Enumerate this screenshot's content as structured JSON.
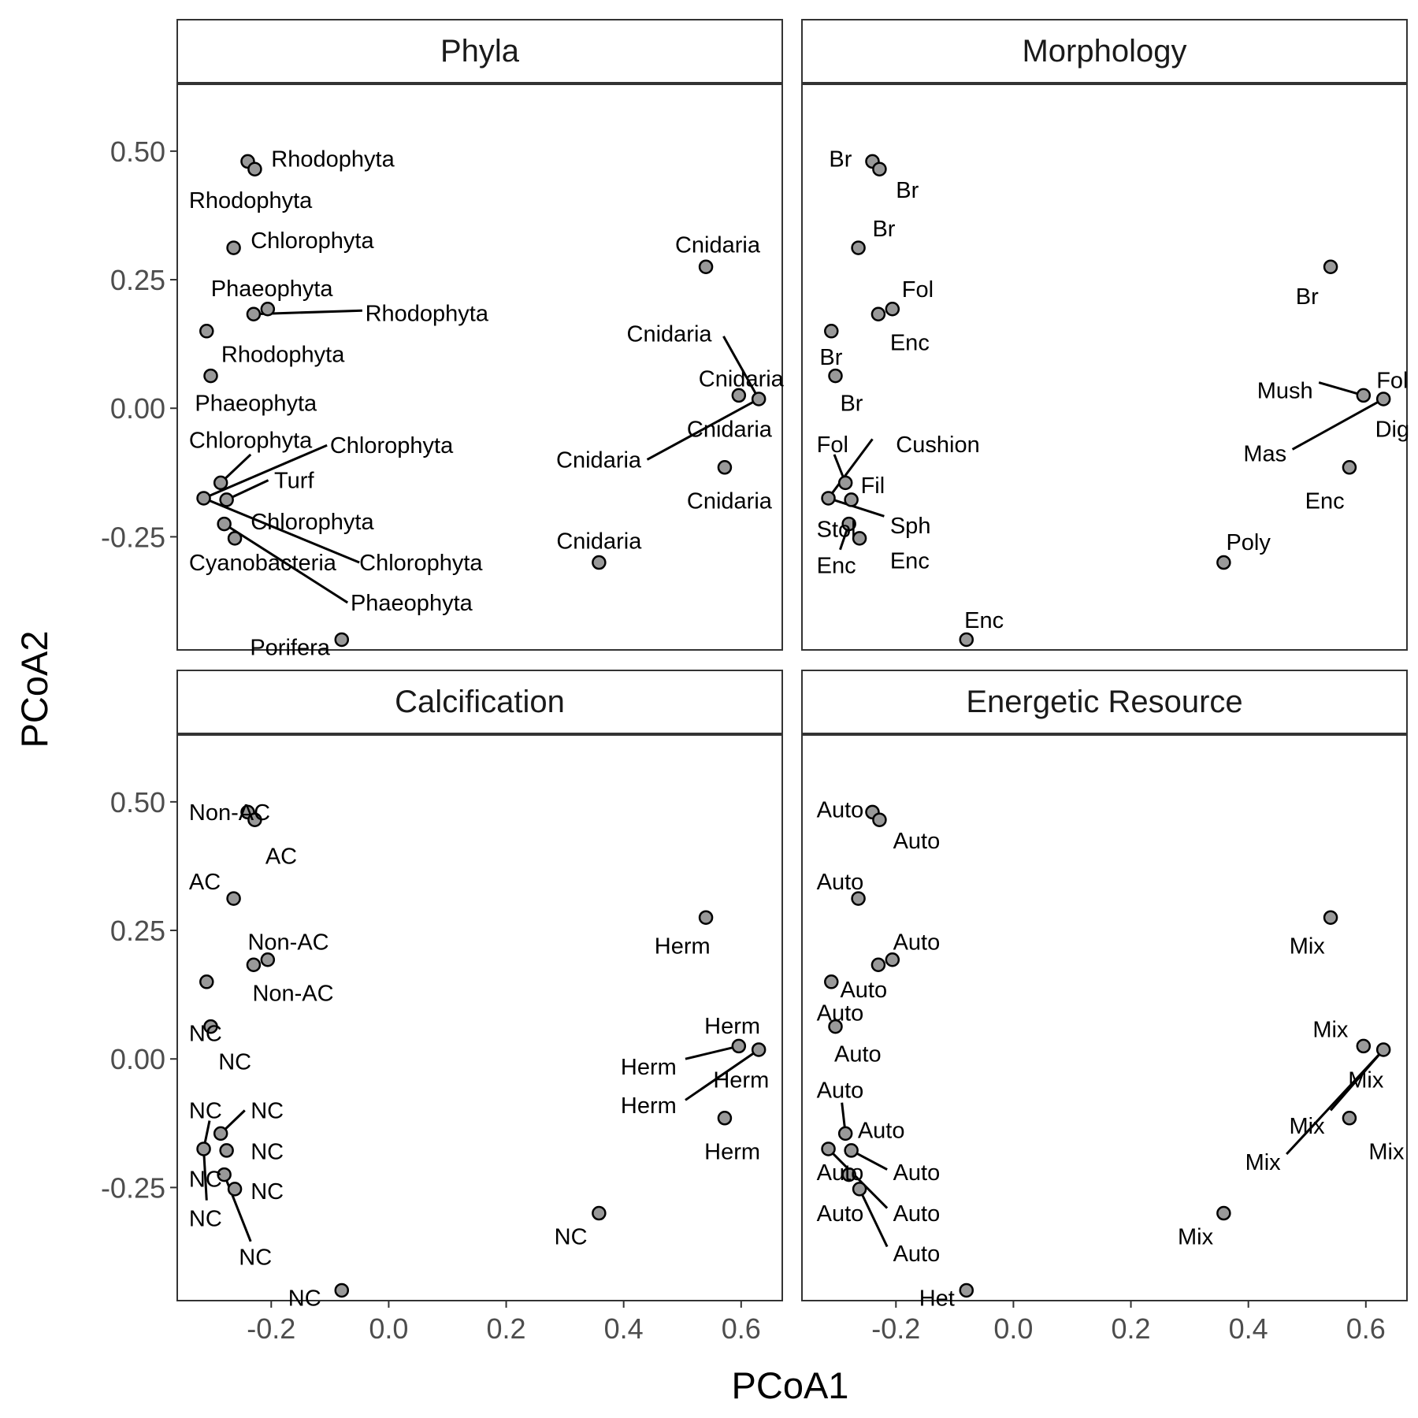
{
  "chart_data": {
    "type": "scatter",
    "xlabel": "PCoA1",
    "ylabel": "PCoA2",
    "xlim": [
      -0.36,
      0.67
    ],
    "ylim": [
      -0.47,
      0.63
    ],
    "x_ticks": [
      -0.2,
      0.0,
      0.2,
      0.4,
      0.6
    ],
    "x_tick_labels": [
      "-0.2",
      "0.0",
      "0.2",
      "0.4",
      "0.6"
    ],
    "y_ticks": [
      0.5,
      0.25,
      0.0,
      -0.25
    ],
    "y_tick_labels": [
      "0.50",
      "0.25",
      "0.00",
      "-0.25"
    ],
    "grid": false,
    "point_fill": "#999999",
    "point_stroke": "#000000",
    "points": [
      {
        "x": -0.24,
        "y": 0.48
      },
      {
        "x": -0.228,
        "y": 0.465
      },
      {
        "x": -0.264,
        "y": 0.312
      },
      {
        "x": -0.206,
        "y": 0.193
      },
      {
        "x": -0.23,
        "y": 0.183
      },
      {
        "x": -0.31,
        "y": 0.15
      },
      {
        "x": -0.303,
        "y": 0.063
      },
      {
        "x": -0.286,
        "y": -0.145
      },
      {
        "x": -0.315,
        "y": -0.175
      },
      {
        "x": -0.276,
        "y": -0.178
      },
      {
        "x": -0.28,
        "y": -0.225
      },
      {
        "x": -0.262,
        "y": -0.253
      },
      {
        "x": -0.08,
        "y": -0.45
      },
      {
        "x": 0.358,
        "y": -0.3
      },
      {
        "x": 0.54,
        "y": 0.275
      },
      {
        "x": 0.596,
        "y": 0.025
      },
      {
        "x": 0.63,
        "y": 0.018
      },
      {
        "x": 0.572,
        "y": -0.115
      }
    ],
    "panels": [
      {
        "title": "Phyla",
        "labels": [
          {
            "text": "Rhodophyta",
            "x": -0.2,
            "y": 0.485,
            "anchor": "start"
          },
          {
            "text": "Rhodophyta",
            "x": -0.34,
            "y": 0.405,
            "anchor": "start"
          },
          {
            "text": "Chlorophyta",
            "x": -0.235,
            "y": 0.327,
            "anchor": "start"
          },
          {
            "text": "Phaeophyta",
            "x": -0.095,
            "y": 0.233,
            "anchor": "end"
          },
          {
            "text": "Rhodophyta",
            "x": -0.04,
            "y": 0.185,
            "anchor": "start",
            "line": [
              -0.23,
              0.183,
              -0.045,
              0.19
            ]
          },
          {
            "text": "Rhodophyta",
            "x": -0.285,
            "y": 0.105,
            "anchor": "start"
          },
          {
            "text": "Phaeophyta",
            "x": -0.33,
            "y": 0.01,
            "anchor": "start"
          },
          {
            "text": "Chlorophyta",
            "x": -0.34,
            "y": -0.062,
            "anchor": "start",
            "line": [
              -0.286,
              -0.145,
              -0.235,
              -0.09
            ]
          },
          {
            "text": "Chlorophyta",
            "x": -0.1,
            "y": -0.072,
            "anchor": "start",
            "line": [
              -0.315,
              -0.175,
              -0.105,
              -0.072
            ]
          },
          {
            "text": "Turf",
            "x": -0.195,
            "y": -0.14,
            "anchor": "start",
            "line": [
              -0.276,
              -0.178,
              -0.205,
              -0.14
            ]
          },
          {
            "text": "Chlorophyta",
            "x": -0.235,
            "y": -0.22,
            "anchor": "start"
          },
          {
            "text": "Cyanobacteria",
            "x": -0.34,
            "y": -0.3,
            "anchor": "start"
          },
          {
            "text": "Chlorophyta",
            "x": -0.05,
            "y": -0.3,
            "anchor": "start",
            "line": [
              -0.315,
              -0.175,
              -0.05,
              -0.3
            ]
          },
          {
            "text": "Phaeophyta",
            "x": -0.065,
            "y": -0.378,
            "anchor": "start",
            "line": [
              -0.28,
              -0.225,
              -0.07,
              -0.378
            ]
          },
          {
            "text": "Porifera",
            "x": -0.1,
            "y": -0.465,
            "anchor": "end"
          },
          {
            "text": "Cnidaria",
            "x": 0.358,
            "y": -0.258,
            "anchor": "middle"
          },
          {
            "text": "Cnidaria",
            "x": 0.56,
            "y": 0.318,
            "anchor": "middle"
          },
          {
            "text": "Cnidaria",
            "x": 0.55,
            "y": 0.145,
            "anchor": "end",
            "line": [
              0.63,
              0.018,
              0.57,
              0.14
            ]
          },
          {
            "text": "Cnidaria",
            "x": 0.6,
            "y": 0.058,
            "anchor": "middle"
          },
          {
            "text": "Cnidaria",
            "x": 0.58,
            "y": -0.04,
            "anchor": "middle"
          },
          {
            "text": "Cnidaria",
            "x": 0.43,
            "y": -0.1,
            "anchor": "end",
            "line": [
              0.63,
              0.018,
              0.44,
              -0.1
            ]
          },
          {
            "text": "Cnidaria",
            "x": 0.58,
            "y": -0.18,
            "anchor": "middle"
          }
        ]
      },
      {
        "title": "Morphology",
        "labels": [
          {
            "text": "Br",
            "x": -0.275,
            "y": 0.485,
            "anchor": "end"
          },
          {
            "text": "Br",
            "x": -0.2,
            "y": 0.425,
            "anchor": "start"
          },
          {
            "text": "Br",
            "x": -0.24,
            "y": 0.35,
            "anchor": "start"
          },
          {
            "text": "Fol",
            "x": -0.19,
            "y": 0.232,
            "anchor": "start"
          },
          {
            "text": "Enc",
            "x": -0.21,
            "y": 0.128,
            "anchor": "start"
          },
          {
            "text": "Br",
            "x": -0.33,
            "y": 0.1,
            "anchor": "start"
          },
          {
            "text": "Br",
            "x": -0.295,
            "y": 0.01,
            "anchor": "start"
          },
          {
            "text": "Fol",
            "x": -0.335,
            "y": -0.07,
            "anchor": "start",
            "line": [
              -0.286,
              -0.145,
              -0.305,
              -0.09
            ]
          },
          {
            "text": "Cushion",
            "x": -0.2,
            "y": -0.07,
            "anchor": "start",
            "line": [
              -0.315,
              -0.175,
              -0.24,
              -0.06
            ]
          },
          {
            "text": "Fil",
            "x": -0.26,
            "y": -0.15,
            "anchor": "start"
          },
          {
            "text": "Sph",
            "x": -0.21,
            "y": -0.228,
            "anchor": "start",
            "line": [
              -0.315,
              -0.175,
              -0.22,
              -0.21
            ]
          },
          {
            "text": "Stol",
            "x": -0.335,
            "y": -0.235,
            "anchor": "start"
          },
          {
            "text": "Enc",
            "x": -0.335,
            "y": -0.305,
            "anchor": "start",
            "line": [
              -0.28,
              -0.225,
              -0.295,
              -0.275
            ]
          },
          {
            "text": "Enc",
            "x": -0.21,
            "y": -0.296,
            "anchor": "start"
          },
          {
            "text": "Enc",
            "x": -0.05,
            "y": -0.412,
            "anchor": "middle"
          },
          {
            "text": "Br",
            "x": 0.5,
            "y": 0.218,
            "anchor": "middle"
          },
          {
            "text": "Fol",
            "x": 0.645,
            "y": 0.055,
            "anchor": "middle"
          },
          {
            "text": "Mush",
            "x": 0.51,
            "y": 0.035,
            "anchor": "end",
            "line": [
              0.596,
              0.025,
              0.52,
              0.05
            ]
          },
          {
            "text": "Dig",
            "x": 0.645,
            "y": -0.04,
            "anchor": "middle"
          },
          {
            "text": "Mas",
            "x": 0.465,
            "y": -0.088,
            "anchor": "end",
            "line": [
              0.63,
              0.018,
              0.475,
              -0.08
            ]
          },
          {
            "text": "Enc",
            "x": 0.53,
            "y": -0.18,
            "anchor": "middle"
          },
          {
            "text": "Poly",
            "x": 0.4,
            "y": -0.26,
            "anchor": "middle"
          }
        ]
      },
      {
        "title": "Calcification",
        "labels": [
          {
            "text": "Non-AC",
            "x": -0.34,
            "y": 0.48,
            "anchor": "start"
          },
          {
            "text": "AC",
            "x": -0.21,
            "y": 0.395,
            "anchor": "start"
          },
          {
            "text": "AC",
            "x": -0.34,
            "y": 0.345,
            "anchor": "start"
          },
          {
            "text": "Non-AC",
            "x": -0.24,
            "y": 0.228,
            "anchor": "start"
          },
          {
            "text": "Non-AC",
            "x": -0.232,
            "y": 0.128,
            "anchor": "start"
          },
          {
            "text": "NC",
            "x": -0.34,
            "y": 0.05,
            "anchor": "start"
          },
          {
            "text": "NC",
            "x": -0.29,
            "y": -0.005,
            "anchor": "start"
          },
          {
            "text": "NC",
            "x": -0.34,
            "y": -0.1,
            "anchor": "start",
            "line": [
              -0.315,
              -0.175,
              -0.305,
              -0.12
            ]
          },
          {
            "text": "NC",
            "x": -0.235,
            "y": -0.1,
            "anchor": "start",
            "line": [
              -0.286,
              -0.145,
              -0.245,
              -0.1
            ]
          },
          {
            "text": "NC",
            "x": -0.235,
            "y": -0.18,
            "anchor": "start"
          },
          {
            "text": "NC",
            "x": -0.34,
            "y": -0.233,
            "anchor": "start"
          },
          {
            "text": "NC",
            "x": -0.235,
            "y": -0.257,
            "anchor": "start"
          },
          {
            "text": "NC",
            "x": -0.34,
            "y": -0.31,
            "anchor": "start",
            "line": [
              -0.315,
              -0.175,
              -0.31,
              -0.275
            ]
          },
          {
            "text": "NC",
            "x": -0.255,
            "y": -0.385,
            "anchor": "start",
            "line": [
              -0.28,
              -0.225,
              -0.235,
              -0.355
            ]
          },
          {
            "text": "NC",
            "x": -0.115,
            "y": -0.465,
            "anchor": "end"
          },
          {
            "text": "NC",
            "x": 0.31,
            "y": -0.345,
            "anchor": "middle"
          },
          {
            "text": "Herm",
            "x": 0.5,
            "y": 0.22,
            "anchor": "middle"
          },
          {
            "text": "Herm",
            "x": 0.585,
            "y": 0.065,
            "anchor": "middle"
          },
          {
            "text": "Herm",
            "x": 0.49,
            "y": -0.015,
            "anchor": "end",
            "line": [
              0.596,
              0.025,
              0.505,
              0
            ]
          },
          {
            "text": "Herm",
            "x": 0.6,
            "y": -0.04,
            "anchor": "middle"
          },
          {
            "text": "Herm",
            "x": 0.49,
            "y": -0.09,
            "anchor": "end",
            "line": [
              0.63,
              0.018,
              0.505,
              -0.08
            ]
          },
          {
            "text": "Herm",
            "x": 0.585,
            "y": -0.18,
            "anchor": "middle"
          }
        ]
      },
      {
        "title": "Energetic Resource",
        "labels": [
          {
            "text": "Auto",
            "x": -0.335,
            "y": 0.485,
            "anchor": "start"
          },
          {
            "text": "Auto",
            "x": -0.205,
            "y": 0.425,
            "anchor": "start"
          },
          {
            "text": "Auto",
            "x": -0.335,
            "y": 0.345,
            "anchor": "start"
          },
          {
            "text": "Auto",
            "x": -0.205,
            "y": 0.228,
            "anchor": "start"
          },
          {
            "text": "Auto",
            "x": -0.295,
            "y": 0.135,
            "anchor": "start"
          },
          {
            "text": "Auto",
            "x": -0.335,
            "y": 0.09,
            "anchor": "start"
          },
          {
            "text": "Auto",
            "x": -0.305,
            "y": 0.01,
            "anchor": "start"
          },
          {
            "text": "Auto",
            "x": -0.335,
            "y": -0.06,
            "anchor": "start",
            "line": [
              -0.286,
              -0.145,
              -0.292,
              -0.085
            ]
          },
          {
            "text": "Auto",
            "x": -0.265,
            "y": -0.138,
            "anchor": "start"
          },
          {
            "text": "Auto",
            "x": -0.335,
            "y": -0.22,
            "anchor": "start"
          },
          {
            "text": "Auto",
            "x": -0.205,
            "y": -0.22,
            "anchor": "start",
            "line": [
              -0.276,
              -0.178,
              -0.215,
              -0.215
            ]
          },
          {
            "text": "Auto",
            "x": -0.205,
            "y": -0.3,
            "anchor": "start",
            "line": [
              -0.315,
              -0.175,
              -0.215,
              -0.29
            ]
          },
          {
            "text": "Auto",
            "x": -0.335,
            "y": -0.3,
            "anchor": "start"
          },
          {
            "text": "Auto",
            "x": -0.205,
            "y": -0.378,
            "anchor": "start",
            "line": [
              -0.262,
              -0.253,
              -0.215,
              -0.365
            ]
          },
          {
            "text": "Het",
            "x": -0.1,
            "y": -0.465,
            "anchor": "end"
          },
          {
            "text": "Mix",
            "x": 0.5,
            "y": 0.22,
            "anchor": "middle"
          },
          {
            "text": "Mix",
            "x": 0.57,
            "y": 0.058,
            "anchor": "end"
          },
          {
            "text": "Mix",
            "x": 0.6,
            "y": -0.04,
            "anchor": "middle"
          },
          {
            "text": "Mix",
            "x": 0.53,
            "y": -0.13,
            "anchor": "end",
            "line": [
              0.63,
              0.018,
              0.54,
              -0.1
            ]
          },
          {
            "text": "Mix",
            "x": 0.635,
            "y": -0.18,
            "anchor": "middle"
          },
          {
            "text": "Mix",
            "x": 0.455,
            "y": -0.2,
            "anchor": "end",
            "line": [
              0.63,
              0.018,
              0.465,
              -0.185
            ]
          },
          {
            "text": "Mix",
            "x": 0.31,
            "y": -0.345,
            "anchor": "middle"
          }
        ]
      }
    ]
  }
}
